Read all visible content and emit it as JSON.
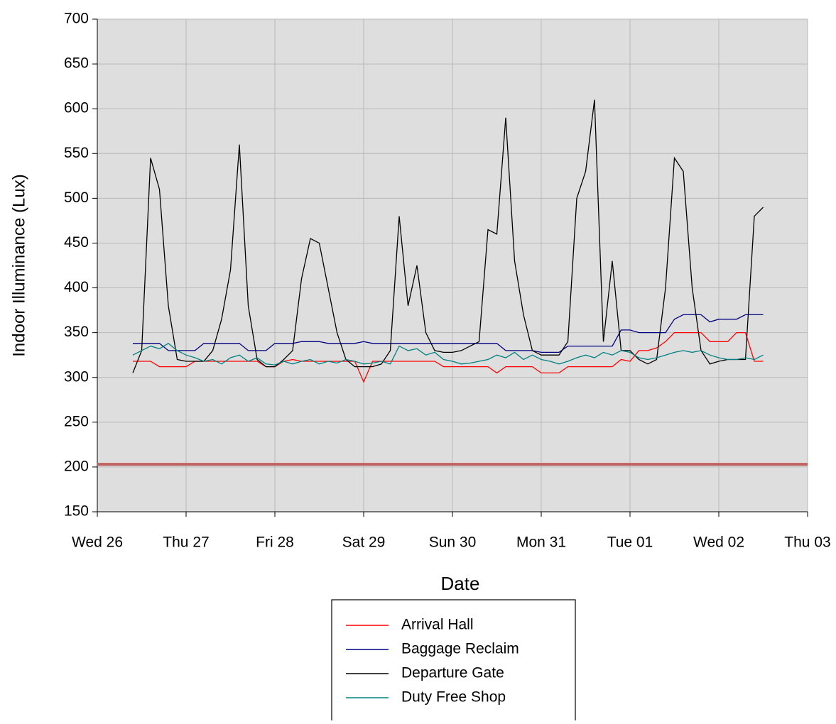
{
  "chart_data": {
    "type": "line",
    "x_label": "Date",
    "y_label": "Indoor Illuminance (Lux)",
    "xlim": [
      0,
      8
    ],
    "xticks": [
      {
        "value": 0,
        "label": "Wed 26"
      },
      {
        "value": 1,
        "label": "Thu 27"
      },
      {
        "value": 2,
        "label": "Fri 28"
      },
      {
        "value": 3,
        "label": "Sat 29"
      },
      {
        "value": 4,
        "label": "Sun 30"
      },
      {
        "value": 5,
        "label": "Mon 31"
      },
      {
        "value": 6,
        "label": "Tue 01"
      },
      {
        "value": 7,
        "label": "Wed 02"
      },
      {
        "value": 8,
        "label": "Thu 03"
      }
    ],
    "ylim": [
      150,
      700
    ],
    "yticks": [
      150,
      200,
      250,
      300,
      350,
      400,
      450,
      500,
      550,
      600,
      650,
      700
    ],
    "grid": true,
    "reference_line": {
      "value": 203,
      "color": "#c06060"
    },
    "x": [
      0.4,
      0.5,
      0.6,
      0.7,
      0.8,
      0.9,
      1.0,
      1.1,
      1.2,
      1.3,
      1.4,
      1.5,
      1.6,
      1.7,
      1.8,
      1.9,
      2.0,
      2.1,
      2.2,
      2.3,
      2.4,
      2.5,
      2.6,
      2.7,
      2.8,
      2.9,
      3.0,
      3.1,
      3.2,
      3.3,
      3.4,
      3.5,
      3.6,
      3.7,
      3.8,
      3.9,
      4.0,
      4.1,
      4.2,
      4.3,
      4.4,
      4.5,
      4.6,
      4.7,
      4.8,
      4.9,
      5.0,
      5.1,
      5.2,
      5.3,
      5.4,
      5.5,
      5.6,
      5.7,
      5.8,
      5.9,
      6.0,
      6.1,
      6.2,
      6.3,
      6.4,
      6.5,
      6.6,
      6.7,
      6.8,
      6.9,
      7.0,
      7.1,
      7.2,
      7.3,
      7.4,
      7.5
    ],
    "series": [
      {
        "name": "Arrival Hall",
        "color": "#ff0000",
        "values": [
          318,
          318,
          318,
          312,
          312,
          312,
          312,
          318,
          318,
          318,
          318,
          318,
          318,
          318,
          318,
          312,
          312,
          318,
          320,
          318,
          318,
          318,
          318,
          318,
          318,
          318,
          295,
          318,
          318,
          318,
          318,
          318,
          318,
          318,
          318,
          312,
          312,
          312,
          312,
          312,
          312,
          305,
          312,
          312,
          312,
          312,
          305,
          305,
          305,
          312,
          312,
          312,
          312,
          312,
          312,
          320,
          318,
          330,
          330,
          333,
          340,
          350,
          350,
          350,
          350,
          340,
          340,
          340,
          350,
          350,
          318,
          318
        ]
      },
      {
        "name": "Baggage Reclaim",
        "color": "#000080",
        "values": [
          338,
          338,
          338,
          338,
          330,
          330,
          330,
          330,
          338,
          338,
          338,
          338,
          338,
          330,
          330,
          330,
          338,
          338,
          338,
          340,
          340,
          340,
          338,
          338,
          338,
          338,
          340,
          338,
          338,
          338,
          338,
          338,
          338,
          338,
          338,
          338,
          338,
          338,
          338,
          338,
          338,
          338,
          330,
          330,
          330,
          330,
          328,
          328,
          328,
          335,
          335,
          335,
          335,
          335,
          335,
          353,
          353,
          350,
          350,
          350,
          350,
          365,
          370,
          370,
          370,
          362,
          365,
          365,
          365,
          370,
          370,
          370
        ]
      },
      {
        "name": "Departure Gate",
        "color": "#000000",
        "values": [
          305,
          330,
          545,
          510,
          380,
          320,
          318,
          318,
          318,
          330,
          365,
          420,
          560,
          380,
          320,
          312,
          312,
          320,
          330,
          410,
          455,
          450,
          400,
          350,
          320,
          312,
          312,
          312,
          315,
          330,
          480,
          380,
          425,
          350,
          330,
          328,
          328,
          330,
          335,
          340,
          465,
          460,
          590,
          430,
          370,
          330,
          325,
          325,
          325,
          340,
          500,
          530,
          610,
          340,
          430,
          330,
          330,
          320,
          315,
          320,
          400,
          545,
          530,
          400,
          330,
          315,
          318,
          320,
          320,
          320,
          480,
          490
        ]
      },
      {
        "name": "Duty Free Shop",
        "color": "#008080",
        "values": [
          325,
          330,
          335,
          332,
          338,
          330,
          325,
          322,
          318,
          320,
          315,
          322,
          325,
          318,
          322,
          315,
          314,
          318,
          315,
          318,
          320,
          315,
          318,
          316,
          320,
          318,
          315,
          316,
          318,
          315,
          335,
          330,
          332,
          325,
          328,
          320,
          318,
          315,
          316,
          318,
          320,
          325,
          322,
          328,
          320,
          325,
          320,
          318,
          315,
          318,
          322,
          325,
          322,
          328,
          325,
          330,
          328,
          322,
          320,
          322,
          325,
          328,
          330,
          328,
          330,
          325,
          322,
          320,
          320,
          322,
          320,
          325
        ]
      }
    ],
    "legend": "bottom"
  }
}
